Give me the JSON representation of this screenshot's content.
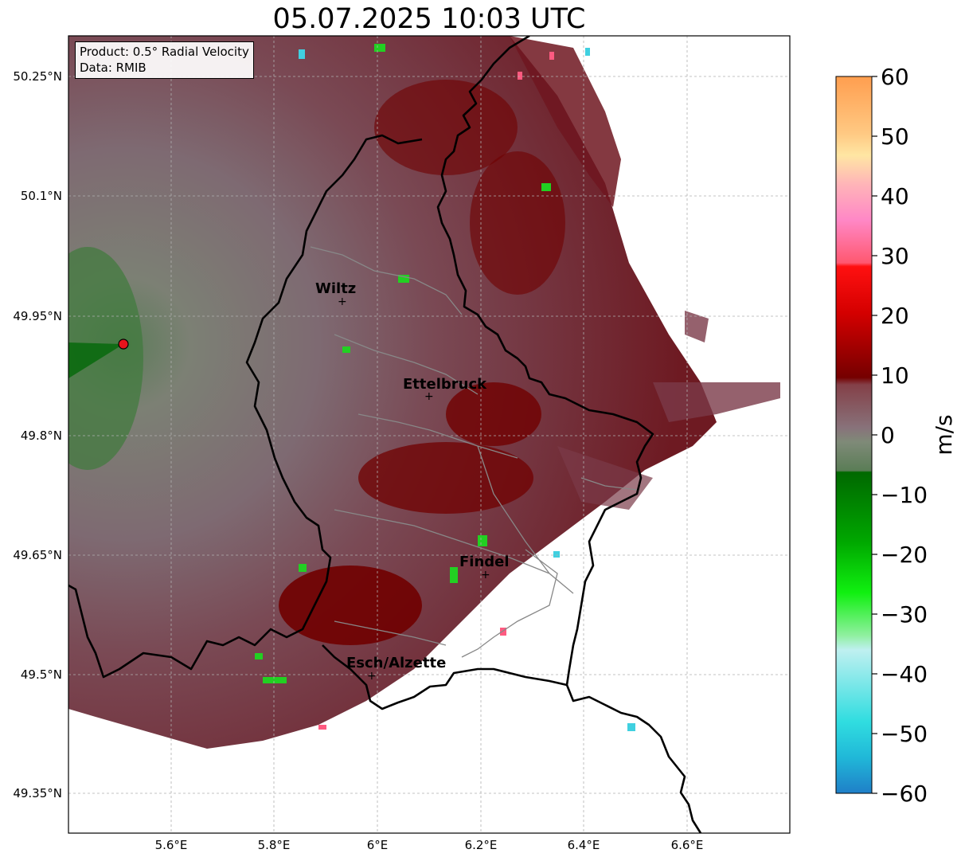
{
  "title": "05.07.2025 10:03 UTC",
  "info": {
    "product": "Product: 0.5° Radial Velocity",
    "source": "Data: RMIB"
  },
  "axes": {
    "lon_ticks": [
      "5.6°E",
      "5.8°E",
      "6°E",
      "6.2°E",
      "6.4°E",
      "6.6°E"
    ],
    "lat_ticks": [
      "50.25°N",
      "50.1°N",
      "49.95°N",
      "49.8°N",
      "49.65°N",
      "49.5°N",
      "49.35°N"
    ],
    "gridlines": true
  },
  "cities": [
    {
      "name": "Wiltz"
    },
    {
      "name": "Ettelbruck"
    },
    {
      "name": "Findel"
    },
    {
      "name": "Esch/Alzette"
    }
  ],
  "radar_site": {
    "color": "#e8141c"
  },
  "colorbar": {
    "unit": "m/s",
    "min": -60,
    "max": 60,
    "ticks": [
      "60",
      "50",
      "40",
      "30",
      "20",
      "10",
      "0",
      "−10",
      "−20",
      "−30",
      "−40",
      "−50",
      "−60"
    ]
  }
}
